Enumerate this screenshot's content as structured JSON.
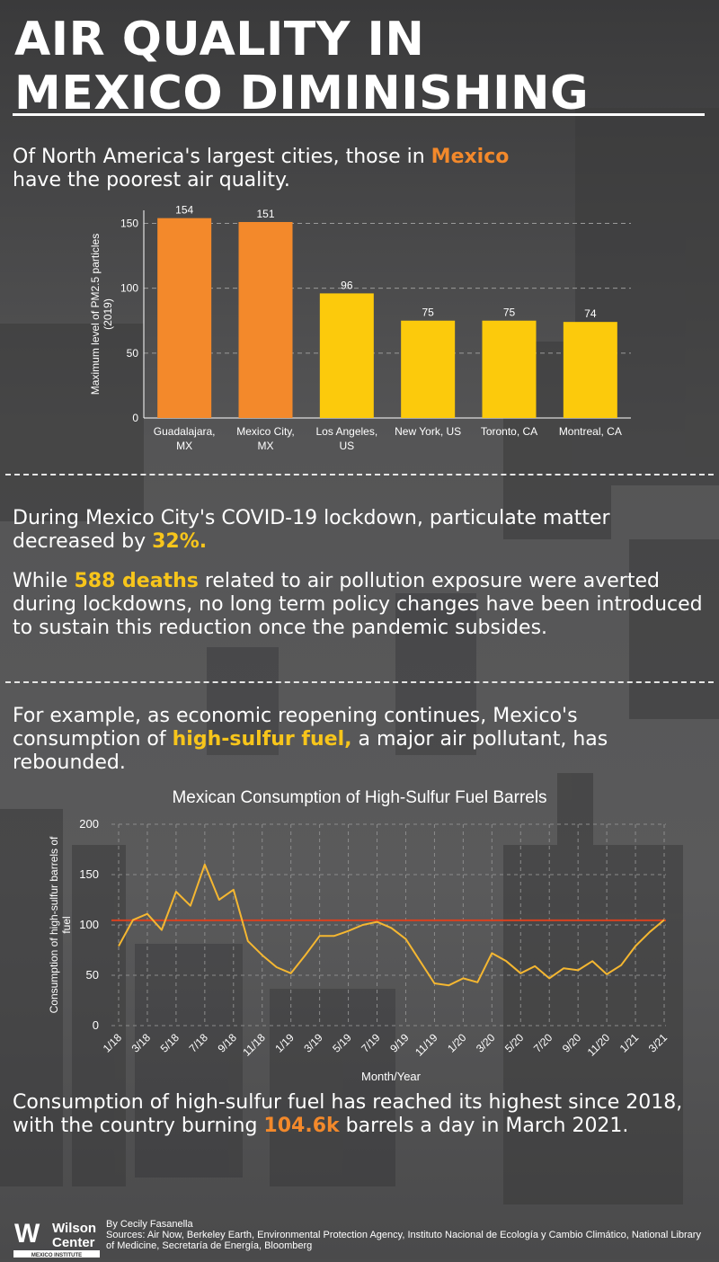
{
  "title_line1": "AIR QUALITY IN",
  "title_line2": "MEXICO DIMINISHING",
  "intro": {
    "before": "Of North America's largest cities, those in ",
    "highlight": "Mexico",
    "after": "have the poorest air quality."
  },
  "covid": {
    "before": "During Mexico City's COVID-19 lockdown, particulate matter decreased by ",
    "highlight": "32%."
  },
  "deaths": {
    "before": "While ",
    "highlight": "588 deaths",
    "after": " related to air pollution exposure were averted during lockdowns, no long term policy changes have been introduced to sustain this reduction once the pandemic subsides."
  },
  "example": {
    "before": "For example, as economic reopening continues, Mexico's consumption of ",
    "highlight": "high-sulfur fuel,",
    "after": " a major air pollutant, has rebounded."
  },
  "conclusion": {
    "before": "Consumption of high-sulfur fuel has reached its highest since 2018, with the country burning ",
    "highlight": "104.6k",
    "after": " barrels a day in March 2021."
  },
  "footer": {
    "logo_mark": "W",
    "logo_line1": "Wilson",
    "logo_line2": "Center",
    "logo_sub": "MEXICO INSTITUTE",
    "byline": "By Cecily Fasanella",
    "sources": "Sources: Air Now, Berkeley Earth, Environmental Protection Agency, Instituto Nacional de Ecología y Cambio Climático, National Library of Medicine, Secretaría de Energía, Bloomberg"
  },
  "colors": {
    "orange": "#f3892b",
    "yellow": "#f7c51b",
    "line_yellow": "#f5b731",
    "reference_red": "#d9401f"
  },
  "chart_data": [
    {
      "type": "bar",
      "title": "",
      "xlabel": "",
      "ylabel": "Maximum level of PM2.5 particles (2019)",
      "ylim": [
        0,
        160
      ],
      "yticks": [
        0,
        50,
        100,
        150
      ],
      "grid": true,
      "categories": [
        [
          "Guadalajara,",
          "MX"
        ],
        [
          "Mexico City,",
          "MX"
        ],
        [
          "Los Angeles,",
          "US"
        ],
        [
          "New York, US"
        ],
        [
          "Toronto, CA"
        ],
        [
          "Montreal, CA"
        ]
      ],
      "values": [
        154,
        151,
        96,
        75,
        75,
        74
      ],
      "bar_colors": [
        "#f3892b",
        "#f3892b",
        "#fcca0c",
        "#fcca0c",
        "#fcca0c",
        "#fcca0c"
      ]
    },
    {
      "type": "line",
      "title": "Mexican Consumption of High-Sulfur Fuel Barrels",
      "xlabel": "Month/Year",
      "ylabel": "Consumption of high-sulfur barrels of fuel",
      "ylim": [
        0,
        200
      ],
      "yticks": [
        0,
        50,
        100,
        150,
        200
      ],
      "grid": true,
      "x": [
        "1/18",
        "2/18",
        "3/18",
        "4/18",
        "5/18",
        "6/18",
        "7/18",
        "8/18",
        "9/18",
        "10/18",
        "11/18",
        "12/18",
        "1/19",
        "2/19",
        "3/19",
        "4/19",
        "5/19",
        "6/19",
        "7/19",
        "8/19",
        "9/19",
        "10/19",
        "11/19",
        "12/19",
        "1/20",
        "2/20",
        "3/20",
        "4/20",
        "5/20",
        "6/20",
        "7/20",
        "8/20",
        "9/20",
        "10/20",
        "11/20",
        "12/20",
        "1/21",
        "2/21",
        "3/21"
      ],
      "tick_labels": [
        "1/18",
        "3/18",
        "5/18",
        "7/18",
        "9/18",
        "11/18",
        "1/19",
        "3/19",
        "5/19",
        "7/19",
        "9/19",
        "11/19",
        "1/20",
        "3/20",
        "5/20",
        "7/20",
        "9/20",
        "11/20",
        "1/21",
        "3/21"
      ],
      "series": [
        {
          "values": [
            79,
            105,
            111,
            95,
            133,
            119,
            160,
            125,
            135,
            84,
            70,
            58,
            52,
            70,
            89,
            89,
            94,
            100,
            103,
            97,
            86,
            64,
            42,
            40,
            47,
            43,
            72,
            64,
            52,
            59,
            47,
            57,
            55,
            64,
            51,
            60,
            79,
            93,
            105
          ]
        }
      ],
      "reference_line": 104.6
    }
  ]
}
